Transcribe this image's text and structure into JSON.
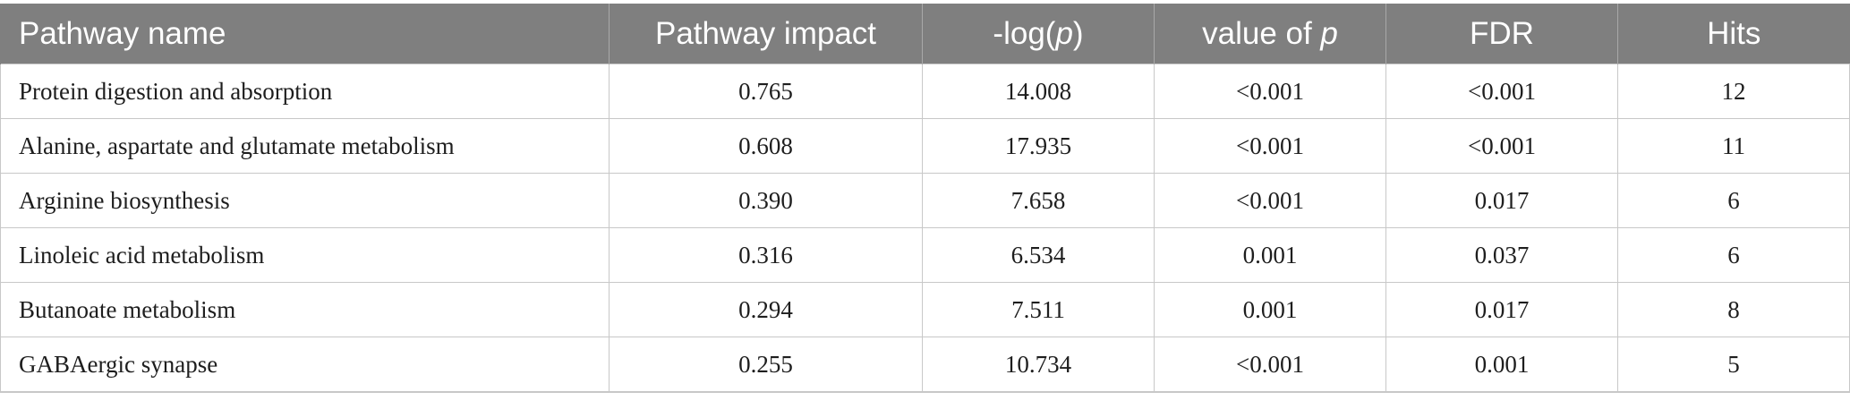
{
  "table": {
    "headers": [
      {
        "pre": "Pathway name",
        "italic": "",
        "post": ""
      },
      {
        "pre": "Pathway impact",
        "italic": "",
        "post": ""
      },
      {
        "pre": "-log(",
        "italic": "p",
        "post": ")"
      },
      {
        "pre": "value of ",
        "italic": "p",
        "post": ""
      },
      {
        "pre": "FDR",
        "italic": "",
        "post": ""
      },
      {
        "pre": "Hits",
        "italic": "",
        "post": ""
      }
    ],
    "rows": [
      [
        "Protein digestion and absorption",
        "0.765",
        "14.008",
        "<0.001",
        "<0.001",
        "12"
      ],
      [
        "Alanine, aspartate and glutamate metabolism",
        "0.608",
        "17.935",
        "<0.001",
        "<0.001",
        "11"
      ],
      [
        "Arginine biosynthesis",
        "0.390",
        "7.658",
        "<0.001",
        "0.017",
        "6"
      ],
      [
        "Linoleic acid metabolism",
        "0.316",
        "6.534",
        "0.001",
        "0.037",
        "6"
      ],
      [
        "Butanoate metabolism",
        "0.294",
        "7.511",
        "0.001",
        "0.017",
        "8"
      ],
      [
        "GABAergic synapse",
        "0.255",
        "10.734",
        "<0.001",
        "0.001",
        "5"
      ]
    ]
  },
  "colors": {
    "header_bg": "#7f7f7f",
    "header_text": "#ffffff",
    "border": "#c8c8c8"
  }
}
